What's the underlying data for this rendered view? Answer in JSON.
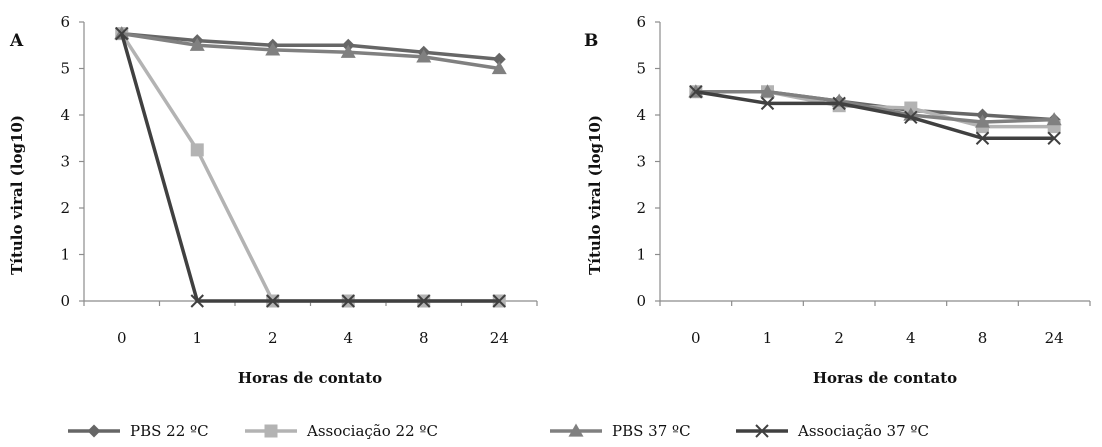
{
  "chart_data": [
    {
      "type": "line",
      "panel_label": "A",
      "categories": [
        "0",
        "1",
        "2",
        "4",
        "8",
        "24"
      ],
      "xlabel": "Horas de contato",
      "ylabel": "Título viral (log10)",
      "ylim": [
        0,
        6
      ],
      "yticks": [
        "0",
        "1",
        "2",
        "3",
        "4",
        "5",
        "6"
      ],
      "grid": false,
      "series": [
        {
          "name": "PBS 22 ºC",
          "values": [
            5.75,
            5.6,
            5.5,
            5.5,
            5.35,
            5.2
          ],
          "color": "#666666",
          "marker": "diamond"
        },
        {
          "name": "Associação 22 ºC",
          "values": [
            5.75,
            3.25,
            0,
            0,
            0,
            0
          ],
          "color": "#b3b3b3",
          "marker": "square"
        },
        {
          "name": "PBS 37 ºC",
          "values": [
            5.75,
            5.5,
            5.4,
            5.35,
            5.25,
            5.0
          ],
          "color": "#808080",
          "marker": "triangle"
        },
        {
          "name": "Associação 37 ºC",
          "values": [
            5.75,
            0,
            0,
            0,
            0,
            0
          ],
          "color": "#404040",
          "marker": "x"
        }
      ]
    },
    {
      "type": "line",
      "panel_label": "B",
      "categories": [
        "0",
        "1",
        "2",
        "4",
        "8",
        "24"
      ],
      "xlabel": "Horas de contato",
      "ylabel": "Título viral (log10)",
      "ylim": [
        0,
        6
      ],
      "yticks": [
        "0",
        "1",
        "2",
        "3",
        "4",
        "5",
        "6"
      ],
      "grid": false,
      "series": [
        {
          "name": "PBS 22 ºC",
          "values": [
            4.5,
            4.5,
            4.3,
            4.1,
            4.0,
            3.9
          ],
          "color": "#666666",
          "marker": "diamond"
        },
        {
          "name": "Associação 22 ºC",
          "values": [
            4.5,
            4.5,
            4.2,
            4.15,
            3.75,
            3.75
          ],
          "color": "#b3b3b3",
          "marker": "square"
        },
        {
          "name": "PBS 37 ºC",
          "values": [
            4.5,
            4.5,
            4.3,
            4.0,
            3.85,
            3.9
          ],
          "color": "#808080",
          "marker": "triangle"
        },
        {
          "name": "Associação 37 ºC",
          "values": [
            4.5,
            4.25,
            4.25,
            3.95,
            3.5,
            3.5
          ],
          "color": "#404040",
          "marker": "x"
        }
      ]
    }
  ],
  "legend": {
    "placement": "bottom",
    "entries": [
      "PBS 22 ºC",
      "Associação 22 ºC",
      "PBS 37 ºC",
      "Associação 37 ºC"
    ]
  }
}
